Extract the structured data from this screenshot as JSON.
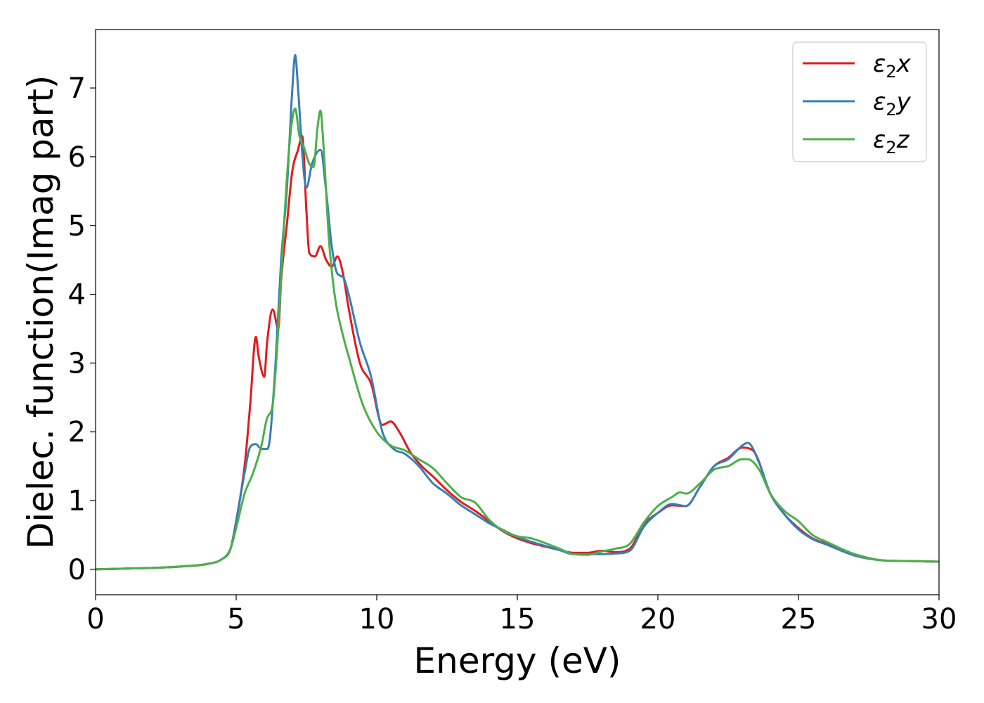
{
  "chart_data": {
    "type": "line",
    "xlabel": "Energy (eV)",
    "ylabel": "Dielec. function(Imag part)",
    "xlim": [
      0,
      30
    ],
    "ylim": [
      -0.37,
      7.85
    ],
    "xticks": [
      "0",
      "5",
      "10",
      "15",
      "20",
      "25",
      "30"
    ],
    "yticks": [
      "0",
      "1",
      "2",
      "3",
      "4",
      "5",
      "6",
      "7"
    ],
    "grid": false,
    "legend_position": "top-right",
    "series": [
      {
        "name": "ε2x",
        "legend": {
          "base": "ε",
          "sub": "2",
          "suffix": "x"
        },
        "color": "#e41a1c",
        "x": [
          0,
          1,
          2,
          3,
          4,
          4.5,
          4.8,
          5.0,
          5.3,
          5.5,
          5.7,
          5.8,
          6.0,
          6.1,
          6.3,
          6.5,
          6.6,
          6.8,
          7.0,
          7.2,
          7.35,
          7.5,
          7.6,
          7.8,
          8.0,
          8.2,
          8.4,
          8.6,
          8.8,
          9.0,
          9.4,
          9.8,
          10.2,
          10.5,
          10.8,
          11.2,
          11.6,
          12.0,
          12.5,
          13.0,
          13.5,
          14.0,
          14.5,
          15.0,
          15.5,
          16.0,
          16.5,
          17.0,
          17.5,
          18.0,
          18.5,
          19.0,
          19.5,
          20.0,
          20.5,
          21.0,
          21.5,
          22.0,
          22.5,
          23.0,
          23.4,
          24.0,
          24.5,
          25.0,
          25.5,
          26.0,
          27.0,
          28.0,
          29.0,
          30.0
        ],
        "y": [
          0.0,
          0.01,
          0.02,
          0.04,
          0.08,
          0.15,
          0.3,
          0.7,
          1.5,
          2.4,
          3.38,
          3.1,
          2.8,
          3.3,
          3.78,
          3.5,
          4.2,
          5.0,
          5.8,
          6.1,
          6.3,
          5.2,
          4.6,
          4.55,
          4.7,
          4.5,
          4.4,
          4.55,
          4.3,
          3.8,
          3.0,
          2.7,
          2.1,
          2.15,
          2.0,
          1.7,
          1.5,
          1.35,
          1.15,
          0.98,
          0.85,
          0.7,
          0.55,
          0.45,
          0.38,
          0.33,
          0.28,
          0.24,
          0.24,
          0.27,
          0.25,
          0.3,
          0.65,
          0.82,
          0.93,
          0.92,
          1.2,
          1.5,
          1.62,
          1.77,
          1.72,
          1.1,
          0.8,
          0.6,
          0.45,
          0.37,
          0.22,
          0.13,
          0.12,
          0.11
        ]
      },
      {
        "name": "ε2y",
        "legend": {
          "base": "ε",
          "sub": "2",
          "suffix": "y"
        },
        "color": "#377eb8",
        "x": [
          0,
          1,
          2,
          3,
          4,
          4.5,
          4.8,
          5.0,
          5.3,
          5.5,
          5.7,
          5.9,
          6.1,
          6.2,
          6.4,
          6.6,
          6.8,
          7.0,
          7.1,
          7.2,
          7.4,
          7.5,
          7.7,
          8.0,
          8.2,
          8.4,
          8.6,
          8.8,
          9.0,
          9.4,
          9.8,
          10.2,
          10.6,
          11.0,
          11.5,
          12.0,
          12.5,
          13.0,
          13.5,
          14.0,
          14.5,
          15.0,
          15.5,
          16.0,
          16.5,
          17.0,
          17.5,
          18.0,
          18.5,
          19.0,
          19.5,
          20.0,
          20.5,
          21.0,
          21.5,
          22.0,
          22.5,
          23.0,
          23.2,
          23.6,
          24.0,
          24.5,
          25.0,
          25.5,
          26.0,
          27.0,
          28.0,
          29.0,
          30.0
        ],
        "y": [
          0.0,
          0.01,
          0.02,
          0.04,
          0.08,
          0.15,
          0.3,
          0.7,
          1.4,
          1.78,
          1.82,
          1.75,
          1.75,
          1.9,
          3.0,
          4.5,
          5.5,
          7.0,
          7.48,
          7.0,
          5.8,
          5.55,
          5.9,
          6.1,
          5.5,
          4.7,
          4.3,
          4.25,
          4.0,
          3.3,
          2.8,
          2.0,
          1.75,
          1.68,
          1.5,
          1.25,
          1.1,
          0.93,
          0.8,
          0.67,
          0.57,
          0.47,
          0.4,
          0.34,
          0.28,
          0.22,
          0.22,
          0.22,
          0.23,
          0.27,
          0.62,
          0.82,
          0.95,
          0.92,
          1.2,
          1.5,
          1.6,
          1.8,
          1.84,
          1.55,
          1.1,
          0.8,
          0.58,
          0.44,
          0.36,
          0.2,
          0.13,
          0.12,
          0.11
        ]
      },
      {
        "name": "ε2z",
        "legend": {
          "base": "ε",
          "sub": "2",
          "suffix": "z"
        },
        "color": "#4daf4a",
        "x": [
          0,
          1,
          2,
          3,
          4,
          4.5,
          4.8,
          5.0,
          5.3,
          5.6,
          5.9,
          6.1,
          6.3,
          6.5,
          6.7,
          6.9,
          7.1,
          7.25,
          7.4,
          7.6,
          7.75,
          7.9,
          8.0,
          8.1,
          8.3,
          8.5,
          8.8,
          9.0,
          9.5,
          10.0,
          10.5,
          11.0,
          11.5,
          12.0,
          12.5,
          13.0,
          13.5,
          14.0,
          14.5,
          15.0,
          15.5,
          16.0,
          16.5,
          17.0,
          17.5,
          18.0,
          18.5,
          19.0,
          19.5,
          20.0,
          20.5,
          20.8,
          21.0,
          21.5,
          22.0,
          22.5,
          23.0,
          23.2,
          23.6,
          24.0,
          24.5,
          25.0,
          25.5,
          26.0,
          27.0,
          28.0,
          29.0,
          30.0
        ],
        "y": [
          0.0,
          0.01,
          0.02,
          0.04,
          0.08,
          0.15,
          0.3,
          0.6,
          1.1,
          1.4,
          1.8,
          2.2,
          2.4,
          3.5,
          5.0,
          6.2,
          6.7,
          6.3,
          6.15,
          5.9,
          5.85,
          6.45,
          6.67,
          6.2,
          4.8,
          4.0,
          3.4,
          3.1,
          2.4,
          2.0,
          1.8,
          1.73,
          1.6,
          1.47,
          1.25,
          1.05,
          0.97,
          0.72,
          0.56,
          0.48,
          0.45,
          0.38,
          0.3,
          0.22,
          0.21,
          0.26,
          0.3,
          0.37,
          0.68,
          0.92,
          1.05,
          1.12,
          1.1,
          1.25,
          1.45,
          1.5,
          1.6,
          1.6,
          1.45,
          1.1,
          0.85,
          0.7,
          0.5,
          0.4,
          0.22,
          0.13,
          0.12,
          0.11
        ]
      }
    ]
  }
}
